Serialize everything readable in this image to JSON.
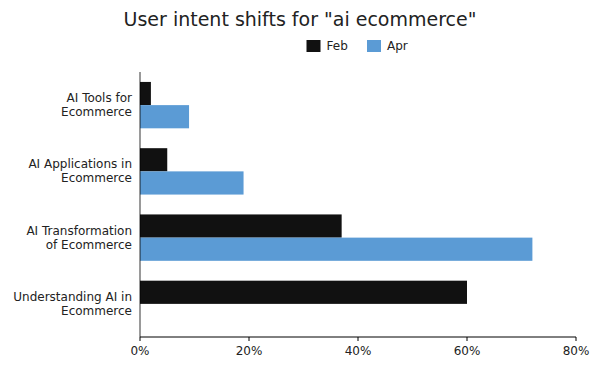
{
  "chart_data": {
    "type": "bar",
    "orientation": "horizontal",
    "title": "User intent shifts for \"ai ecommerce\"",
    "categories": [
      "AI Tools for\nEcommerce",
      "AI Applications in\nEcommerce",
      "AI Transformation\nof Ecommerce",
      "Understanding AI in\nEcommerce"
    ],
    "series": [
      {
        "name": "Feb",
        "color": "#111111",
        "values": [
          2,
          5,
          37,
          60
        ]
      },
      {
        "name": "Apr",
        "color": "#5b9bd5",
        "values": [
          9,
          19,
          72,
          0
        ]
      }
    ],
    "xlim": [
      0,
      80
    ],
    "xticks": [
      {
        "value": 0,
        "label": "0%"
      },
      {
        "value": 20,
        "label": "20%"
      },
      {
        "value": 40,
        "label": "40%"
      },
      {
        "value": 60,
        "label": "60%"
      },
      {
        "value": 80,
        "label": "80%"
      }
    ],
    "grid": false,
    "legend": "top"
  }
}
